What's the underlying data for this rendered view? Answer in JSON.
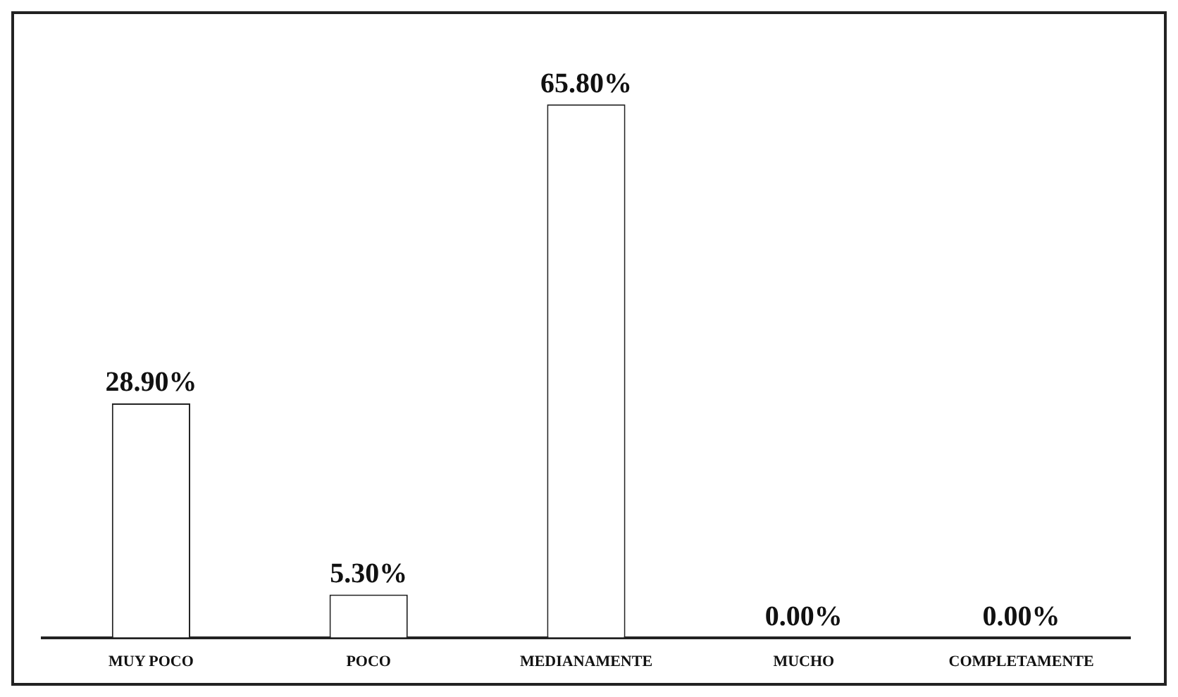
{
  "chart_data": {
    "type": "bar",
    "categories": [
      "MUY POCO",
      "POCO",
      "MEDIANAMENTE",
      "MUCHO",
      "COMPLETAMENTE"
    ],
    "values": [
      28.9,
      5.3,
      65.8,
      0,
      0
    ],
    "value_labels": [
      "28.90%",
      "5.30%",
      "65.80%",
      "0.00%",
      "0.00%"
    ],
    "color": "#ffffff",
    "grid": false,
    "legend": false
  }
}
